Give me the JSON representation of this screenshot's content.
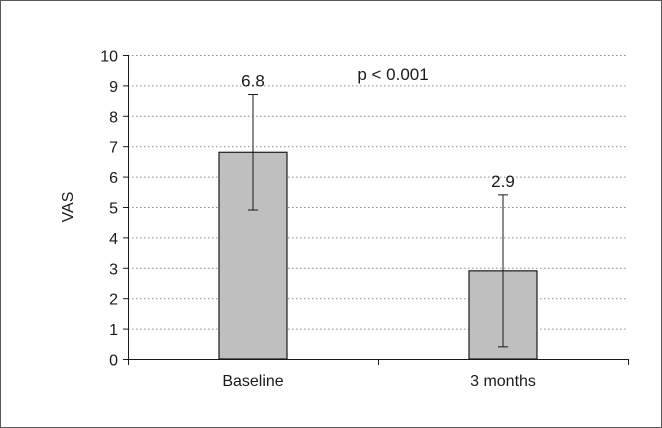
{
  "chart_data": {
    "type": "bar",
    "categories": [
      "Baseline",
      "3 months"
    ],
    "values": [
      6.8,
      2.9
    ],
    "error_bars": [
      {
        "low": 4.9,
        "high": 8.7
      },
      {
        "low": 0.4,
        "high": 5.4
      }
    ],
    "data_labels": [
      "6.8",
      "2.9"
    ],
    "title": "",
    "xlabel": "",
    "ylabel": "VAS",
    "ylim": [
      0,
      10
    ],
    "yticks": [
      0,
      1,
      2,
      3,
      4,
      5,
      6,
      7,
      8,
      9,
      10
    ],
    "grid": "horizontal dotted",
    "annotation": "p < 0.001",
    "colors": {
      "bar_fill": "#bfbfbf",
      "bar_stroke": "#1a1a1a",
      "grid": "#8c8c8c",
      "axis": "#1a1a1a",
      "frame": "#595959"
    }
  }
}
